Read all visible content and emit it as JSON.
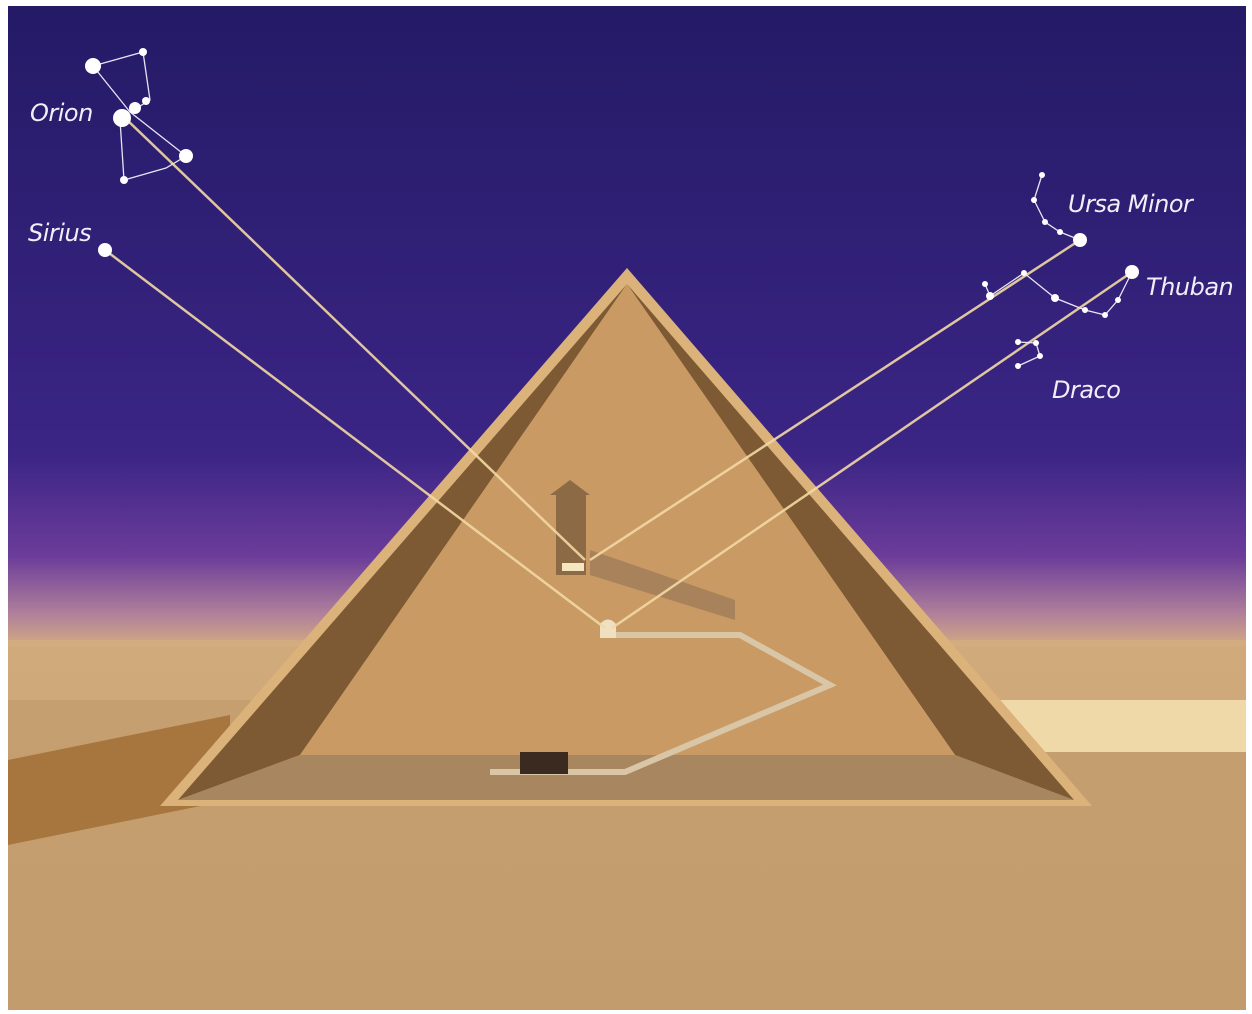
{
  "labels": {
    "orion": "Orion",
    "sirius": "Sirius",
    "ursa_minor": "Ursa Minor",
    "thuban": "Thuban",
    "draco": "Draco"
  }
}
